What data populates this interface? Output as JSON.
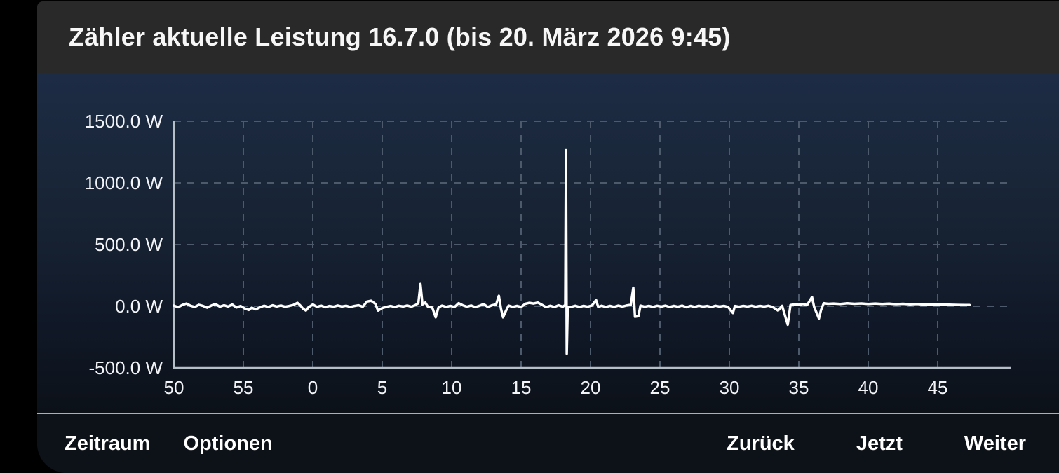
{
  "title_bar": {
    "title": "Zähler aktuelle Leistung 16.7.0 (bis 20. März 2026 9:45)"
  },
  "toolbar": {
    "left_buttons": [
      {
        "label": "Zeitraum"
      },
      {
        "label": "Optionen"
      }
    ],
    "right_buttons": [
      {
        "label": "Zurück"
      },
      {
        "label": "Jetzt"
      },
      {
        "label": "Weiter"
      }
    ]
  },
  "colors": {
    "outside": "#000000",
    "header_bg": "#292929",
    "chart_bg_top": "#1d2c45",
    "chart_bg_bottom": "#0c1118",
    "toolbar_bg": "#0d1219",
    "separator": "#a7b1bd",
    "grid": "#4d5a6b",
    "axis": "#b6bec8",
    "line": "#ffffff",
    "text": "#ffffff"
  },
  "chart_data": {
    "type": "line",
    "title": "Zähler aktuelle Leistung 16.7.0 (bis 20. März 2026 9:45)",
    "unit": "W",
    "xlabel": "",
    "ylabel": "",
    "ylim": [
      -500,
      1500
    ],
    "grid": true,
    "legend": false,
    "y_ticks": [
      {
        "label": "1500.0 W",
        "value": 1500
      },
      {
        "label": "1000.0 W",
        "value": 1000
      },
      {
        "label": "500.0 W",
        "value": 500
      },
      {
        "label": "0.0 W",
        "value": 0
      },
      {
        "label": "-500.0 W",
        "value": -500
      }
    ],
    "x_ticks": [
      {
        "label": "50",
        "min": 0
      },
      {
        "label": "55",
        "min": 5
      },
      {
        "label": "0",
        "min": 10
      },
      {
        "label": "5",
        "min": 15
      },
      {
        "label": "10",
        "min": 20
      },
      {
        "label": "15",
        "min": 25
      },
      {
        "label": "20",
        "min": 30
      },
      {
        "label": "25",
        "min": 35
      },
      {
        "label": "30",
        "min": 40
      },
      {
        "label": "35",
        "min": 45
      },
      {
        "label": "40",
        "min": 50
      },
      {
        "label": "45",
        "min": 55
      }
    ],
    "x_span_minutes": 60.1,
    "series": [
      {
        "name": "Leistung",
        "color": "#ffffff",
        "points": [
          [
            0,
            5
          ],
          [
            0.3,
            -8
          ],
          [
            0.6,
            10
          ],
          [
            0.9,
            22
          ],
          [
            1.2,
            4
          ],
          [
            1.5,
            -6
          ],
          [
            1.8,
            12
          ],
          [
            2.1,
            2
          ],
          [
            2.4,
            -12
          ],
          [
            2.7,
            6
          ],
          [
            3,
            18
          ],
          [
            3.3,
            -4
          ],
          [
            3.6,
            8
          ],
          [
            3.9,
            -2
          ],
          [
            4.2,
            14
          ],
          [
            4.5,
            -10
          ],
          [
            4.8,
            2
          ],
          [
            5.1,
            -18
          ],
          [
            5.4,
            -30
          ],
          [
            5.6,
            -12
          ],
          [
            5.9,
            -25
          ],
          [
            6.2,
            -8
          ],
          [
            6.5,
            4
          ],
          [
            6.8,
            -6
          ],
          [
            7.1,
            8
          ],
          [
            7.4,
            -2
          ],
          [
            7.7,
            6
          ],
          [
            8,
            -4
          ],
          [
            8.3,
            2
          ],
          [
            8.6,
            10
          ],
          [
            8.9,
            28
          ],
          [
            9.1,
            6
          ],
          [
            9.3,
            -20
          ],
          [
            9.5,
            -35
          ],
          [
            9.7,
            -8
          ],
          [
            10,
            15
          ],
          [
            10.3,
            -5
          ],
          [
            10.6,
            5
          ],
          [
            10.9,
            -8
          ],
          [
            11.2,
            2
          ],
          [
            11.5,
            -4
          ],
          [
            11.8,
            6
          ],
          [
            12.1,
            -2
          ],
          [
            12.4,
            4
          ],
          [
            12.7,
            -6
          ],
          [
            13,
            2
          ],
          [
            13.3,
            8
          ],
          [
            13.6,
            -4
          ],
          [
            13.9,
            38
          ],
          [
            14.2,
            45
          ],
          [
            14.5,
            20
          ],
          [
            14.7,
            -35
          ],
          [
            15,
            -15
          ],
          [
            15.3,
            -5
          ],
          [
            15.6,
            2
          ],
          [
            15.9,
            -6
          ],
          [
            16.2,
            4
          ],
          [
            16.5,
            -2
          ],
          [
            16.8,
            6
          ],
          [
            17.1,
            -4
          ],
          [
            17.4,
            10
          ],
          [
            17.6,
            25
          ],
          [
            17.75,
            180
          ],
          [
            17.9,
            15
          ],
          [
            18.1,
            30
          ],
          [
            18.3,
            -5
          ],
          [
            18.6,
            -10
          ],
          [
            18.85,
            -90
          ],
          [
            19.05,
            -10
          ],
          [
            19.3,
            5
          ],
          [
            19.6,
            -5
          ],
          [
            19.9,
            3
          ],
          [
            20.2,
            -6
          ],
          [
            20.5,
            25
          ],
          [
            20.8,
            8
          ],
          [
            21.1,
            -4
          ],
          [
            21.4,
            6
          ],
          [
            21.7,
            -8
          ],
          [
            22,
            4
          ],
          [
            22.3,
            18
          ],
          [
            22.6,
            -6
          ],
          [
            22.9,
            8
          ],
          [
            23.2,
            15
          ],
          [
            23.4,
            85
          ],
          [
            23.55,
            -20
          ],
          [
            23.7,
            -90
          ],
          [
            23.9,
            -40
          ],
          [
            24.1,
            5
          ],
          [
            24.4,
            -5
          ],
          [
            24.7,
            3
          ],
          [
            25,
            -6
          ],
          [
            25.3,
            20
          ],
          [
            25.6,
            28
          ],
          [
            25.9,
            22
          ],
          [
            26.2,
            30
          ],
          [
            26.5,
            12
          ],
          [
            26.8,
            -8
          ],
          [
            27.1,
            4
          ],
          [
            27.4,
            -6
          ],
          [
            27.7,
            8
          ],
          [
            28,
            -4
          ],
          [
            28.18,
            10
          ],
          [
            28.23,
            1270
          ],
          [
            28.29,
            -385
          ],
          [
            28.36,
            -10
          ],
          [
            28.6,
            -5
          ],
          [
            28.9,
            4
          ],
          [
            29.2,
            -6
          ],
          [
            29.5,
            3
          ],
          [
            29.8,
            -4
          ],
          [
            30.1,
            6
          ],
          [
            30.4,
            50
          ],
          [
            30.55,
            -5
          ],
          [
            30.8,
            4
          ],
          [
            31.1,
            -6
          ],
          [
            31.4,
            3
          ],
          [
            31.7,
            -5
          ],
          [
            32,
            5
          ],
          [
            32.3,
            -3
          ],
          [
            32.6,
            6
          ],
          [
            32.9,
            12
          ],
          [
            33.08,
            150
          ],
          [
            33.2,
            -85
          ],
          [
            33.45,
            -80
          ],
          [
            33.6,
            5
          ],
          [
            33.9,
            -4
          ],
          [
            34.2,
            3
          ],
          [
            34.5,
            -5
          ],
          [
            34.8,
            4
          ],
          [
            35.1,
            -3
          ],
          [
            35.4,
            5
          ],
          [
            35.7,
            -6
          ],
          [
            36,
            3
          ],
          [
            36.3,
            -4
          ],
          [
            36.6,
            5
          ],
          [
            36.9,
            -8
          ],
          [
            37.2,
            3
          ],
          [
            37.5,
            -5
          ],
          [
            37.8,
            4
          ],
          [
            38.1,
            -3
          ],
          [
            38.4,
            2
          ],
          [
            38.7,
            -6
          ],
          [
            39,
            4
          ],
          [
            39.3,
            -3
          ],
          [
            39.6,
            3
          ],
          [
            39.9,
            -5
          ],
          [
            40.25,
            -55
          ],
          [
            40.4,
            2
          ],
          [
            40.7,
            -4
          ],
          [
            41,
            3
          ],
          [
            41.3,
            -3
          ],
          [
            41.6,
            4
          ],
          [
            41.9,
            -4
          ],
          [
            42.2,
            3
          ],
          [
            42.5,
            -3
          ],
          [
            42.8,
            4
          ],
          [
            43.1,
            -5
          ],
          [
            43.5,
            -35
          ],
          [
            43.8,
            3
          ],
          [
            44.2,
            -150
          ],
          [
            44.4,
            10
          ],
          [
            44.7,
            15
          ],
          [
            45,
            12
          ],
          [
            45.3,
            18
          ],
          [
            45.6,
            10
          ],
          [
            45.95,
            75
          ],
          [
            46.1,
            -5
          ],
          [
            46.45,
            -100
          ],
          [
            46.6,
            -30
          ],
          [
            46.8,
            25
          ],
          [
            47.1,
            20
          ],
          [
            47.5,
            22
          ],
          [
            48,
            18
          ],
          [
            48.5,
            24
          ],
          [
            49,
            20
          ],
          [
            49.5,
            23
          ],
          [
            50,
            19
          ],
          [
            50.5,
            22
          ],
          [
            51,
            18
          ],
          [
            51.5,
            21
          ],
          [
            52,
            17
          ],
          [
            52.5,
            20
          ],
          [
            53,
            16
          ],
          [
            53.5,
            18
          ],
          [
            54,
            14
          ],
          [
            54.5,
            16
          ],
          [
            55,
            13
          ],
          [
            55.5,
            14
          ],
          [
            56,
            12
          ],
          [
            56.5,
            11
          ],
          [
            57,
            10
          ],
          [
            57.3,
            10
          ]
        ]
      }
    ]
  }
}
